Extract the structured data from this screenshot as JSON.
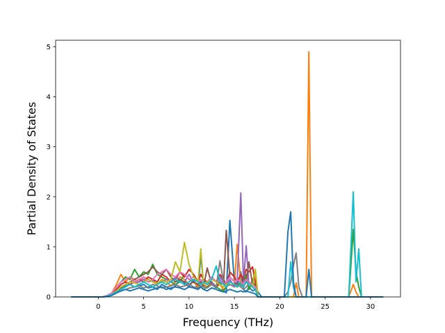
{
  "chart_data": {
    "type": "line",
    "xlabel": "Frequency (THz)",
    "ylabel": "Partial Density of States",
    "xlim": [
      -4.7,
      33.3
    ],
    "ylim": [
      0,
      5.13
    ],
    "xticks": [
      0,
      5,
      10,
      15,
      20,
      25,
      30
    ],
    "yticks": [
      0,
      1,
      2,
      3,
      4,
      5
    ],
    "grid": false,
    "legend": "none",
    "x": [
      -3,
      -2,
      -1,
      0,
      0.5,
      1,
      1.5,
      2,
      2.5,
      3,
      3.5,
      4,
      4.5,
      5,
      5.5,
      6,
      6.5,
      7,
      7.5,
      8,
      8.5,
      9,
      9.5,
      10,
      10.5,
      11,
      11.3,
      11.6,
      12,
      12.5,
      13,
      13.4,
      13.8,
      14.1,
      14.5,
      15,
      15.3,
      15.7,
      16,
      16.3,
      16.6,
      17,
      17.3,
      17.6,
      18,
      19,
      20,
      20.5,
      20.9,
      21.2,
      21.5,
      21.8,
      22.1,
      22.5,
      22.9,
      23.2,
      23.5,
      24,
      25,
      26,
      27,
      27.6,
      28.1,
      28.4,
      28.7,
      29,
      29.5,
      30,
      31.4
    ],
    "series": [
      {
        "color": "#1f77b4",
        "values": [
          0,
          0,
          0,
          0,
          0,
          0.02,
          0.05,
          0.12,
          0.18,
          0.22,
          0.25,
          0.2,
          0.22,
          0.25,
          0.18,
          0.2,
          0.15,
          0.25,
          0.2,
          0.15,
          0.22,
          0.35,
          0.28,
          0.2,
          0.35,
          0.15,
          0.85,
          0.25,
          0.3,
          0.25,
          0.18,
          0.3,
          0.12,
          0.08,
          1.53,
          0.3,
          0.2,
          0.5,
          0.15,
          0.1,
          0.2,
          0.12,
          0.15,
          0.1,
          0,
          0,
          0,
          0,
          0,
          0,
          0,
          0,
          0,
          0,
          0,
          0,
          0,
          0,
          0,
          0,
          0,
          0,
          0,
          0,
          0,
          0,
          0,
          0,
          0
        ]
      },
      {
        "color": "#ff7f0e",
        "values": [
          0,
          0,
          0,
          0,
          0,
          0.03,
          0.08,
          0.25,
          0.45,
          0.3,
          0.4,
          0.35,
          0.3,
          0.4,
          0.35,
          0.3,
          0.25,
          0.35,
          0.3,
          0.22,
          0.3,
          0.4,
          0.35,
          0.25,
          0.3,
          0.2,
          0.3,
          0.25,
          0.2,
          0.3,
          0.2,
          0.25,
          0.15,
          0.2,
          0.3,
          0.25,
          1.05,
          0.3,
          0.2,
          0.4,
          0.15,
          0.3,
          0.55,
          0,
          0,
          0,
          0,
          0,
          0,
          0,
          0,
          0.28,
          0,
          0,
          0,
          4.9,
          0,
          0,
          0,
          0,
          0,
          0,
          0.25,
          0.1,
          0,
          0,
          0,
          0,
          0
        ]
      },
      {
        "color": "#2ca02c",
        "values": [
          0,
          0,
          0,
          0,
          0,
          0.02,
          0.06,
          0.2,
          0.3,
          0.4,
          0.35,
          0.55,
          0.4,
          0.5,
          0.45,
          0.65,
          0.45,
          0.4,
          0.35,
          0.3,
          0.25,
          0.3,
          0.45,
          0.35,
          0.3,
          0.25,
          0.2,
          0.15,
          0.2,
          0.25,
          0.2,
          0.15,
          0.12,
          0.2,
          0.3,
          0.25,
          0.2,
          0.3,
          0.2,
          0.45,
          0.15,
          0.35,
          0.2,
          0,
          0,
          0,
          0,
          0,
          0,
          0,
          0,
          0,
          0,
          0,
          0,
          0,
          0,
          0,
          0,
          0,
          0,
          0,
          1.35,
          0.5,
          0.2,
          0,
          0,
          0,
          0
        ]
      },
      {
        "color": "#d62728",
        "values": [
          0,
          0,
          0,
          0,
          0,
          0.02,
          0.05,
          0.15,
          0.25,
          0.3,
          0.25,
          0.3,
          0.35,
          0.3,
          0.4,
          0.35,
          0.3,
          0.45,
          0.4,
          0.3,
          0.35,
          0.5,
          0.4,
          0.55,
          0.45,
          0.3,
          0.45,
          0.35,
          0.3,
          0.4,
          0.3,
          0.45,
          0.35,
          0.25,
          0.5,
          0.4,
          0.3,
          0.45,
          0.35,
          0.55,
          0.5,
          0.6,
          0.3,
          0,
          0,
          0,
          0,
          0,
          0,
          0,
          0,
          0,
          0,
          0,
          0,
          0,
          0,
          0,
          0,
          0,
          0,
          0,
          0,
          0,
          0,
          0,
          0,
          0,
          0
        ]
      },
      {
        "color": "#9467bd",
        "values": [
          0,
          0,
          0,
          0,
          0,
          0.02,
          0.04,
          0.12,
          0.2,
          0.25,
          0.3,
          0.28,
          0.3,
          0.35,
          0.3,
          0.32,
          0.28,
          0.3,
          0.35,
          0.3,
          0.4,
          0.35,
          0.3,
          0.45,
          0.3,
          0.25,
          0.35,
          0.3,
          0.25,
          0.3,
          0.2,
          0.4,
          0.3,
          0.25,
          0.35,
          0.2,
          0.3,
          2.08,
          0.3,
          1.02,
          0.25,
          0.2,
          0.15,
          0,
          0,
          0,
          0,
          0,
          0,
          0,
          0,
          0,
          0,
          0,
          0,
          0,
          0,
          0,
          0,
          0,
          0,
          0,
          0,
          0,
          0,
          0,
          0,
          0,
          0
        ]
      },
      {
        "color": "#8c564b",
        "values": [
          0,
          0,
          0,
          0,
          0,
          0.02,
          0.05,
          0.1,
          0.18,
          0.25,
          0.3,
          0.35,
          0.4,
          0.45,
          0.5,
          0.6,
          0.5,
          0.45,
          0.55,
          0.4,
          0.3,
          0.35,
          0.3,
          0.25,
          0.3,
          0.25,
          0.3,
          0.2,
          0.58,
          0.25,
          0.2,
          0.3,
          0.25,
          1.33,
          0.4,
          0.3,
          0.25,
          0.2,
          0.4,
          0.3,
          0.7,
          0.25,
          0.2,
          0,
          0,
          0,
          0,
          0,
          0,
          0,
          0,
          0,
          0,
          0,
          0,
          0,
          0,
          0,
          0,
          0,
          0,
          0,
          0,
          0,
          0,
          0,
          0,
          0,
          0
        ]
      },
      {
        "color": "#e377c2",
        "values": [
          0,
          0,
          0,
          0,
          0,
          0.03,
          0.08,
          0.2,
          0.3,
          0.35,
          0.4,
          0.3,
          0.35,
          0.4,
          0.3,
          0.35,
          0.45,
          0.5,
          0.55,
          0.45,
          0.4,
          0.5,
          0.45,
          0.35,
          0.4,
          0.3,
          0.35,
          0.25,
          0.3,
          0.4,
          0.3,
          0.35,
          0.25,
          0.3,
          0.4,
          0.3,
          0.35,
          0.3,
          0.25,
          0.35,
          0.3,
          0.25,
          0.2,
          0,
          0,
          0,
          0,
          0,
          0,
          0,
          0,
          0,
          0,
          0,
          0,
          0,
          0,
          0,
          0,
          0,
          0,
          0,
          0,
          0,
          0,
          0,
          0,
          0,
          0
        ]
      },
      {
        "color": "#7f7f7f",
        "values": [
          0,
          0,
          0,
          0,
          0,
          0.02,
          0.04,
          0.08,
          0.12,
          0.15,
          0.18,
          0.2,
          0.22,
          0.18,
          0.2,
          0.25,
          0.22,
          0.18,
          0.2,
          0.22,
          0.25,
          0.2,
          0.22,
          0.25,
          0.2,
          0.18,
          0.22,
          0.2,
          0.18,
          0.25,
          0.2,
          0.72,
          0.3,
          0.2,
          0.25,
          0.2,
          0.25,
          0.2,
          0.15,
          0.2,
          0.25,
          0.2,
          0.15,
          0,
          0,
          0,
          0,
          0,
          0.1,
          0.3,
          0.62,
          0.88,
          0.2,
          0,
          0,
          0,
          0,
          0,
          0,
          0,
          0,
          0,
          0,
          0,
          0,
          0,
          0,
          0,
          0
        ]
      },
      {
        "color": "#bcbd22",
        "values": [
          0,
          0,
          0,
          0,
          0,
          0.02,
          0.05,
          0.12,
          0.2,
          0.25,
          0.3,
          0.28,
          0.25,
          0.3,
          0.35,
          0.3,
          0.28,
          0.32,
          0.3,
          0.35,
          0.7,
          0.5,
          1.09,
          0.65,
          0.4,
          0.3,
          0.96,
          0.25,
          0.3,
          0.35,
          0.3,
          0.25,
          0.2,
          0.25,
          0.3,
          0.25,
          0.2,
          0.25,
          0.2,
          0.3,
          0.25,
          0.2,
          0.55,
          0,
          0,
          0,
          0,
          0,
          0,
          0,
          0,
          0,
          0,
          0,
          0,
          0,
          0,
          0,
          0,
          0,
          0,
          0,
          0,
          0,
          0,
          0,
          0,
          0,
          0
        ]
      },
      {
        "color": "#17becf",
        "values": [
          0,
          0,
          0,
          0,
          0,
          0.02,
          0.05,
          0.1,
          0.15,
          0.2,
          0.25,
          0.2,
          0.25,
          0.3,
          0.25,
          0.2,
          0.25,
          0.3,
          0.25,
          0.3,
          0.35,
          0.3,
          0.25,
          0.3,
          0.35,
          0.3,
          0.25,
          0.3,
          0.25,
          0.35,
          0.62,
          0.3,
          0.25,
          0.2,
          0.3,
          0.25,
          0.2,
          0.25,
          0.2,
          0.3,
          0.25,
          0.2,
          0.15,
          0,
          0,
          0,
          0,
          0,
          0,
          0.7,
          0.2,
          0,
          0,
          0,
          0,
          0,
          0,
          0,
          0,
          0,
          0,
          0,
          2.1,
          0.3,
          0.96,
          0,
          0,
          0,
          0
        ]
      },
      {
        "color": "#1f77b4",
        "values": [
          0,
          0,
          0,
          0,
          0,
          0.01,
          0.03,
          0.08,
          0.12,
          0.15,
          0.12,
          0.15,
          0.18,
          0.15,
          0.12,
          0.15,
          0.18,
          0.2,
          0.15,
          0.18,
          0.2,
          0.18,
          0.15,
          0.2,
          0.18,
          0.15,
          0.2,
          0.15,
          0.12,
          0.18,
          0.15,
          0.12,
          0.1,
          0.12,
          0.15,
          0.12,
          0.1,
          0.12,
          0.1,
          0.12,
          0.1,
          0.08,
          0.06,
          0,
          0,
          0,
          0,
          0,
          1.3,
          1.7,
          0.3,
          0,
          0,
          0,
          0,
          0.55,
          0,
          0,
          0,
          0,
          0,
          0,
          0,
          0,
          0,
          0,
          0,
          0,
          0
        ]
      }
    ]
  }
}
